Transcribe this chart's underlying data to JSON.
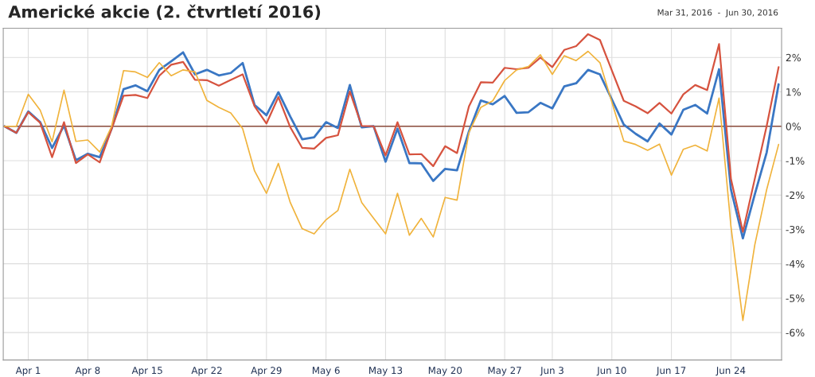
{
  "chart_data": {
    "type": "line",
    "title": "Americké akcie (2. čtvrtletí 2016)",
    "annotations": [
      "Mar 31, 2016  -  Jun 30, 2016"
    ],
    "categories": [
      null,
      null,
      "Apr 1",
      null,
      null,
      null,
      null,
      "Apr 8",
      null,
      null,
      null,
      null,
      "Apr 15",
      null,
      null,
      null,
      null,
      "Apr 22",
      null,
      null,
      null,
      null,
      "Apr 29",
      null,
      null,
      null,
      null,
      "May 6",
      null,
      null,
      null,
      null,
      "May 13",
      null,
      null,
      null,
      null,
      "May 20",
      null,
      null,
      null,
      null,
      "May 27",
      null,
      null,
      null,
      "Jun 3",
      null,
      null,
      null,
      null,
      "Jun 10",
      null,
      null,
      null,
      null,
      "Jun 17",
      null,
      null,
      null,
      null,
      "Jun 24",
      null,
      null,
      null,
      null
    ],
    "series": [
      {
        "color": "#3a77c4",
        "values": [
          0,
          -0.19,
          0.43,
          0.12,
          -0.63,
          0.02,
          -0.99,
          -0.8,
          -0.9,
          -0.07,
          1.08,
          1.19,
          1.02,
          1.64,
          1.89,
          2.15,
          1.51,
          1.64,
          1.48,
          1.55,
          1.84,
          0.62,
          0.32,
          0.99,
          0.28,
          -0.38,
          -0.32,
          0.12,
          -0.05,
          1.2,
          -0.03,
          0,
          -1.03,
          -0.07,
          -1.07,
          -1.08,
          -1.59,
          -1.24,
          -1.28,
          -0.15,
          0.75,
          0.64,
          0.88,
          0.39,
          0.41,
          0.68,
          0.52,
          1.16,
          1.25,
          1.64,
          1.51,
          0.78,
          0.05,
          -0.22,
          -0.44,
          0.08,
          -0.24,
          0.48,
          0.62,
          0.37,
          1.66,
          -1.84,
          -3.26,
          -1.98,
          -0.76,
          1.22
        ]
      },
      {
        "color": "#d6533f",
        "values": [
          0,
          -0.19,
          0.41,
          0.1,
          -0.9,
          0.12,
          -1.07,
          -0.82,
          -1.05,
          -0.07,
          0.89,
          0.91,
          0.82,
          1.47,
          1.79,
          1.87,
          1.35,
          1.34,
          1.18,
          1.35,
          1.51,
          0.58,
          0.08,
          0.85,
          -0.03,
          -0.63,
          -0.65,
          -0.34,
          -0.26,
          1.01,
          0.01,
          0,
          -0.85,
          0.12,
          -0.82,
          -0.81,
          -1.16,
          -0.58,
          -0.78,
          0.58,
          1.28,
          1.27,
          1.7,
          1.66,
          1.7,
          2.0,
          1.72,
          2.22,
          2.33,
          2.68,
          2.51,
          1.62,
          0.74,
          0.58,
          0.38,
          0.68,
          0.37,
          0.93,
          1.2,
          1.05,
          2.39,
          -1.53,
          -3.07,
          -1.53,
          0.01,
          1.72
        ]
      },
      {
        "color": "#f0b33c",
        "values": [
          0,
          0,
          0.93,
          0.47,
          -0.45,
          1.05,
          -0.44,
          -0.4,
          -0.75,
          0,
          1.62,
          1.58,
          1.42,
          1.85,
          1.47,
          1.64,
          1.58,
          0.75,
          0.55,
          0.39,
          -0.07,
          -1.3,
          -1.95,
          -1.08,
          -2.22,
          -2.98,
          -3.13,
          -2.72,
          -2.45,
          -1.25,
          -2.22,
          -2.68,
          -3.13,
          -1.95,
          -3.17,
          -2.68,
          -3.22,
          -2.07,
          -2.15,
          -0.18,
          0.55,
          0.74,
          1.33,
          1.64,
          1.74,
          2.08,
          1.51,
          2.05,
          1.91,
          2.18,
          1.85,
          0.7,
          -0.43,
          -0.53,
          -0.7,
          -0.52,
          -1.42,
          -0.67,
          -0.55,
          -0.72,
          0.82,
          -2.92,
          -5.65,
          -3.45,
          -1.84,
          -0.53
        ]
      }
    ],
    "ylim": [
      -6.8,
      2.85
    ],
    "yticks": [
      {
        "value": 2,
        "label": "2%"
      },
      {
        "value": 1,
        "label": "1%"
      },
      {
        "value": 0,
        "label": "0%"
      },
      {
        "value": -1,
        "label": "-1%"
      },
      {
        "value": -2,
        "label": "-2%"
      },
      {
        "value": -3,
        "label": "-3%"
      },
      {
        "value": -4,
        "label": "-4%"
      },
      {
        "value": -5,
        "label": "-5%"
      },
      {
        "value": -6,
        "label": "-6%"
      }
    ],
    "ref_lines": [
      {
        "axis": "y",
        "value": 0,
        "color": "#8b4a3a"
      }
    ],
    "grid": true,
    "line_style": "solid",
    "marker": "none",
    "legend": false
  }
}
